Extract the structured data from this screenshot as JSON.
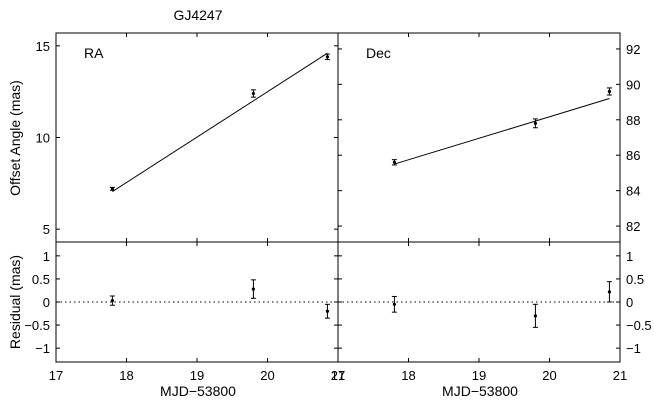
{
  "title": "GJ4247",
  "xlabel": "MJD−53800",
  "ylabel_top": "Offset Angle (mas)",
  "ylabel_bottom": "Residual (mas)",
  "chart_data": [
    {
      "type": "scatter",
      "panel": "RA",
      "label": "RA",
      "x": [
        17.8,
        19.8,
        20.85
      ],
      "y": [
        7.2,
        12.4,
        14.4
      ],
      "yerr": [
        0.08,
        0.2,
        0.15
      ],
      "fit_line": {
        "x": [
          17.8,
          20.85
        ],
        "y": [
          7.05,
          14.6
        ]
      },
      "xlim": [
        17,
        21
      ],
      "ylim": [
        4.3,
        15.7
      ],
      "yticks": [
        5,
        10,
        15
      ],
      "y_axis_side": "left"
    },
    {
      "type": "scatter",
      "panel": "Dec",
      "label": "Dec",
      "x": [
        17.8,
        19.8,
        20.85
      ],
      "y": [
        85.6,
        87.8,
        89.6
      ],
      "yerr": [
        0.15,
        0.25,
        0.2
      ],
      "fit_line": {
        "x": [
          17.8,
          20.85
        ],
        "y": [
          85.5,
          89.2
        ]
      },
      "xlim": [
        17,
        21
      ],
      "ylim": [
        81.1,
        92.9
      ],
      "yticks": [
        82,
        84,
        86,
        88,
        90,
        92
      ],
      "y_axis_side": "right"
    },
    {
      "type": "scatter",
      "panel": "RA residual",
      "x": [
        17.8,
        19.8,
        20.85
      ],
      "y": [
        0.03,
        0.28,
        -0.2
      ],
      "yerr": [
        0.1,
        0.2,
        0.15
      ],
      "reference_line": 0,
      "xlim": [
        17,
        21
      ],
      "ylim": [
        -1.3,
        1.3
      ],
      "yticks": [
        -1,
        -0.5,
        0,
        0.5,
        1
      ],
      "ytick_labels": [
        "−1",
        "−0.5",
        "0",
        "0.5",
        "1"
      ],
      "y_axis_side": "left"
    },
    {
      "type": "scatter",
      "panel": "Dec residual",
      "x": [
        17.8,
        19.8,
        20.85
      ],
      "y": [
        -0.05,
        -0.3,
        0.22
      ],
      "yerr": [
        0.17,
        0.25,
        0.22
      ],
      "reference_line": 0,
      "xlim": [
        17,
        21
      ],
      "ylim": [
        -1.3,
        1.3
      ],
      "yticks": [
        -1,
        -0.5,
        0,
        0.5,
        1
      ],
      "ytick_labels": [
        "−1",
        "−0.5",
        "0",
        "0.5",
        "1"
      ],
      "y_axis_side": "right"
    }
  ],
  "xticks": [
    17,
    18,
    19,
    20,
    21
  ],
  "xtick_labels_left": [
    "17",
    "18",
    "19",
    "20",
    "21"
  ],
  "xtick_labels_right": [
    "17",
    "18",
    "19",
    "20",
    "21"
  ]
}
